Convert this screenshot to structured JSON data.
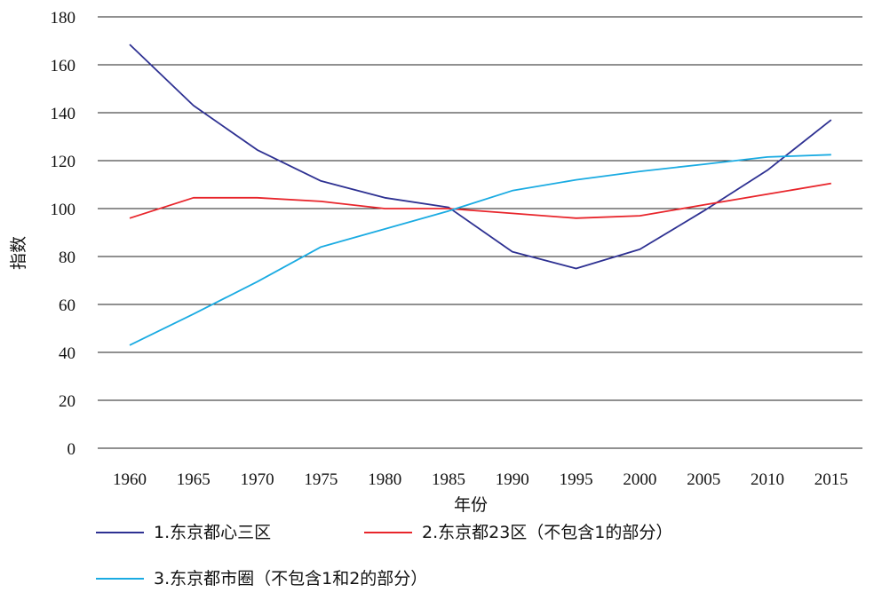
{
  "chart_data": {
    "type": "line",
    "title": "",
    "xlabel": "年份",
    "ylabel": "指数",
    "x": [
      "1960",
      "1965",
      "1970",
      "1975",
      "1980",
      "1985",
      "1990",
      "1995",
      "2000",
      "2005",
      "2010",
      "2015"
    ],
    "ylim": [
      0,
      180
    ],
    "yticks": [
      0,
      20,
      40,
      60,
      80,
      100,
      120,
      140,
      160,
      180
    ],
    "grid": true,
    "legend_position": "bottom",
    "series": [
      {
        "name": "1.东京都心三区",
        "color": "#2e3192",
        "values": [
          168.5,
          143,
          124.5,
          111.5,
          104.5,
          100.5,
          82,
          75,
          83,
          99,
          116,
          137
        ]
      },
      {
        "name": "2.东京都23区（不包含1的部分）",
        "color": "#e8252b",
        "values": [
          96,
          104.5,
          104.5,
          103,
          100,
          100,
          98,
          96,
          97,
          101.5,
          106,
          110.5
        ]
      },
      {
        "name": "3.东京都市圈（不包含1和2的部分）",
        "color": "#1aabe2",
        "values": [
          43,
          56,
          69.5,
          84,
          91.5,
          99,
          107.5,
          112,
          115.5,
          118.5,
          121.5,
          122.5
        ]
      }
    ]
  }
}
